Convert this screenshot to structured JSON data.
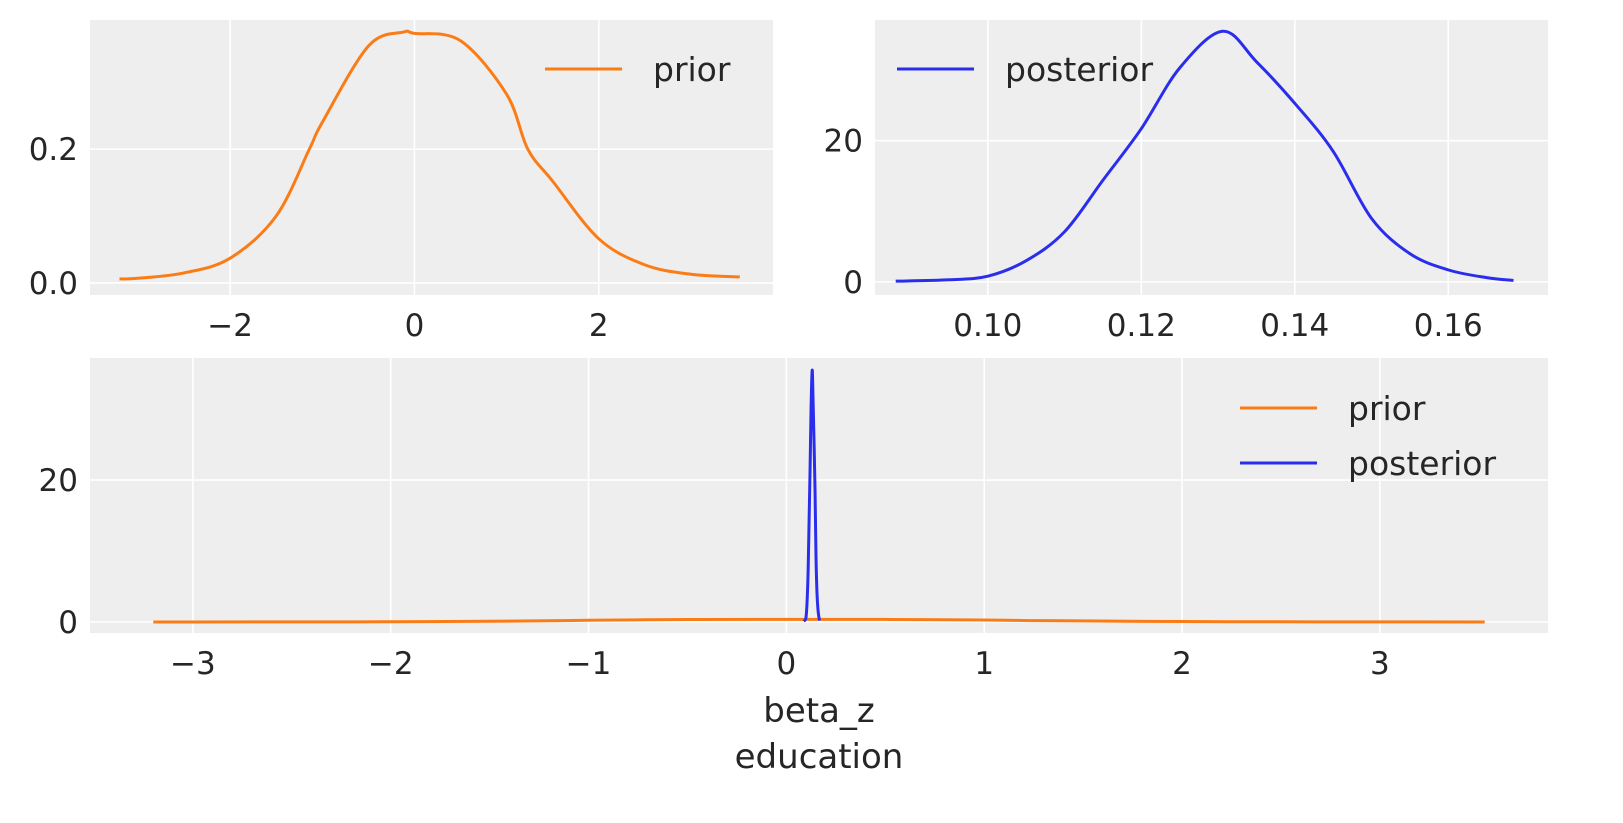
{
  "colors": {
    "prior": "#fa7c17",
    "posterior": "#2a2eec",
    "background": "#eeeeee",
    "grid": "#ffffff"
  },
  "chart_data": [
    {
      "type": "line",
      "panel": "top-left",
      "xlim": [
        -3.52,
        3.89
      ],
      "ylim": [
        -0.018,
        0.393
      ],
      "xticks": [
        -2,
        0,
        2
      ],
      "xtick_labels": [
        "−2",
        "0",
        "2"
      ],
      "yticks": [
        0.0,
        0.2
      ],
      "ytick_labels": [
        "0.0",
        "0.2"
      ],
      "grid": true,
      "legend": "top-right",
      "series": [
        {
          "name": "prior",
          "color": "#fa7c17",
          "x": [
            -3.2,
            -3.0,
            -2.5,
            -2.0,
            -1.5,
            -1.14,
            -1.0,
            -0.5,
            -0.12,
            0.0,
            0.5,
            1.0,
            1.23,
            1.5,
            2.0,
            2.5,
            3.0,
            3.53
          ],
          "y": [
            0.006,
            0.007,
            0.015,
            0.037,
            0.1,
            0.2,
            0.24,
            0.354,
            0.375,
            0.373,
            0.362,
            0.282,
            0.2,
            0.152,
            0.066,
            0.027,
            0.013,
            0.009
          ]
        }
      ]
    },
    {
      "type": "line",
      "panel": "top-right",
      "xlim": [
        0.0853,
        0.173
      ],
      "ylim": [
        -1.86,
        37.1
      ],
      "xticks": [
        0.1,
        0.12,
        0.14,
        0.16
      ],
      "xtick_labels": [
        "0.10",
        "0.12",
        "0.14",
        "0.16"
      ],
      "yticks": [
        0,
        20
      ],
      "ytick_labels": [
        "0",
        "20"
      ],
      "grid": true,
      "legend": "top-left",
      "series": [
        {
          "name": "posterior",
          "color": "#2a2eec",
          "x": [
            0.088,
            0.095,
            0.1,
            0.105,
            0.11,
            0.115,
            0.12,
            0.125,
            0.1306,
            0.135,
            0.14,
            0.145,
            0.15,
            0.155,
            0.16,
            0.165,
            0.1685
          ],
          "y": [
            0.1,
            0.3,
            0.8,
            3.0,
            7.1,
            14.4,
            21.7,
            30.3,
            35.5,
            31.2,
            25.3,
            18.5,
            9.0,
            4.0,
            1.7,
            0.6,
            0.2
          ]
        }
      ]
    },
    {
      "type": "line",
      "panel": "bottom",
      "xlim": [
        -3.52,
        3.85
      ],
      "ylim": [
        -1.55,
        37.2
      ],
      "xticks": [
        -3,
        -2,
        -1,
        0,
        1,
        2,
        3
      ],
      "xtick_labels": [
        "−3",
        "−2",
        "−1",
        "0",
        "1",
        "2",
        "3"
      ],
      "yticks": [
        0,
        20
      ],
      "ytick_labels": [
        "0",
        "20"
      ],
      "xlabel": [
        "beta_z",
        "education"
      ],
      "grid": true,
      "legend": "top-right",
      "series": [
        {
          "name": "prior",
          "color": "#fa7c17",
          "ref": 0
        },
        {
          "name": "posterior",
          "color": "#2a2eec",
          "ref": 1
        }
      ]
    }
  ]
}
